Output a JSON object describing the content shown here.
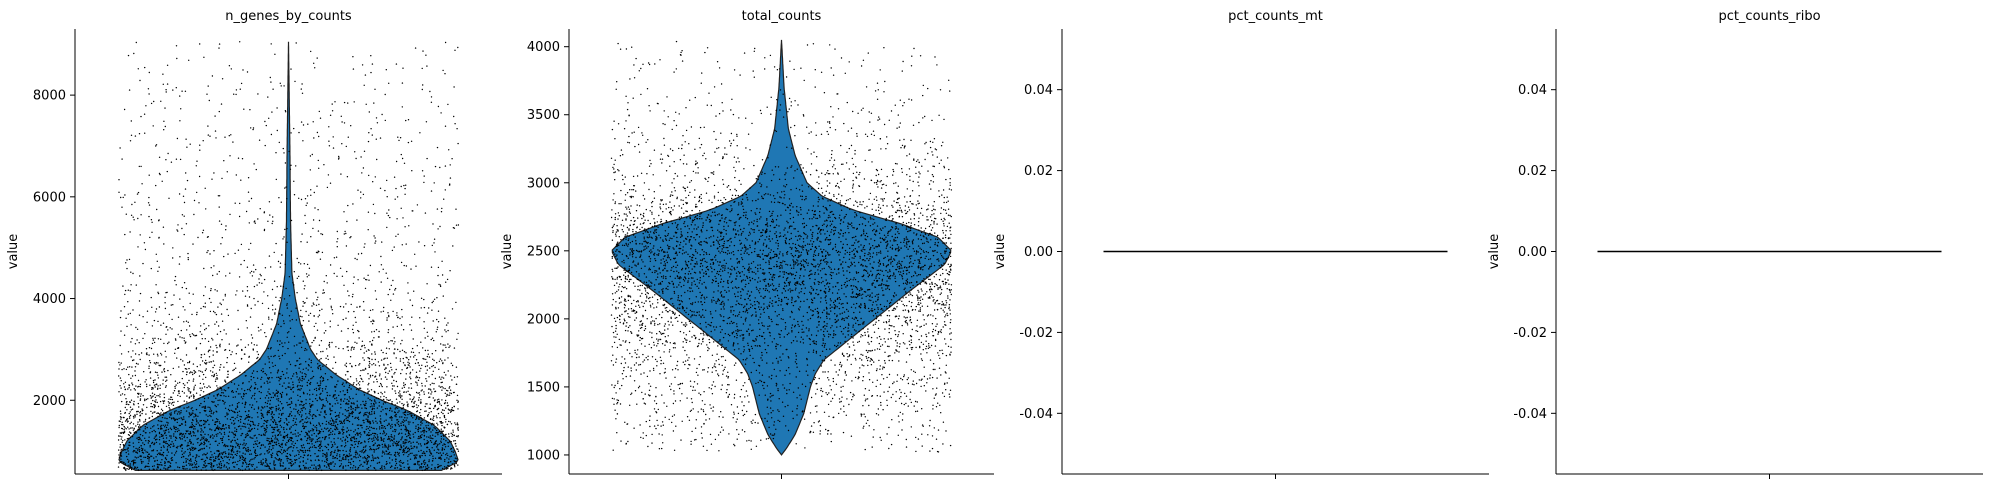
{
  "chart_data": [
    {
      "type": "violin",
      "title": "n_genes_by_counts",
      "ylabel": "value",
      "xlabel": "",
      "ylim": [
        550,
        9300
      ],
      "yticks": [
        2000,
        4000,
        6000,
        8000
      ],
      "violin_color": "#1f77b4",
      "points_color": "#000000",
      "violin_profile": [
        [
          620,
          0.9
        ],
        [
          800,
          1.0
        ],
        [
          1000,
          0.98
        ],
        [
          1200,
          0.95
        ],
        [
          1500,
          0.86
        ],
        [
          1800,
          0.7
        ],
        [
          2000,
          0.55
        ],
        [
          2200,
          0.42
        ],
        [
          2500,
          0.28
        ],
        [
          2800,
          0.17
        ],
        [
          3000,
          0.13
        ],
        [
          3500,
          0.07
        ],
        [
          4000,
          0.04
        ],
        [
          4500,
          0.02
        ],
        [
          5500,
          0.012
        ],
        [
          7000,
          0.008
        ],
        [
          9050,
          0.0
        ]
      ],
      "points_range": [
        620,
        9050
      ]
    },
    {
      "type": "violin",
      "title": "total_counts",
      "ylabel": "value",
      "xlabel": "",
      "ylim": [
        860,
        4130
      ],
      "yticks": [
        1000,
        1500,
        2000,
        2500,
        3000,
        3500,
        4000
      ],
      "violin_color": "#1f77b4",
      "points_color": "#000000",
      "violin_profile": [
        [
          1000,
          0.0
        ],
        [
          1050,
          0.03
        ],
        [
          1150,
          0.08
        ],
        [
          1300,
          0.13
        ],
        [
          1500,
          0.17
        ],
        [
          1600,
          0.2
        ],
        [
          1700,
          0.25
        ],
        [
          1800,
          0.35
        ],
        [
          2000,
          0.55
        ],
        [
          2200,
          0.75
        ],
        [
          2400,
          0.96
        ],
        [
          2500,
          1.0
        ],
        [
          2600,
          0.92
        ],
        [
          2700,
          0.7
        ],
        [
          2800,
          0.42
        ],
        [
          2900,
          0.24
        ],
        [
          3000,
          0.15
        ],
        [
          3200,
          0.08
        ],
        [
          3400,
          0.04
        ],
        [
          3700,
          0.015
        ],
        [
          4050,
          0.0
        ]
      ],
      "points_range": [
        1020,
        4050
      ]
    },
    {
      "type": "violin",
      "title": "pct_counts_mt",
      "ylabel": "value",
      "xlabel": "",
      "ylim": [
        -0.055,
        0.055
      ],
      "yticks": [
        -0.04,
        -0.02,
        0.0,
        0.02,
        0.04
      ],
      "violin_color": "#1f77b4",
      "points_color": "#000000",
      "constant_value": 0.0
    },
    {
      "type": "violin",
      "title": "pct_counts_ribo",
      "ylabel": "value",
      "xlabel": "",
      "ylim": [
        -0.055,
        0.055
      ],
      "yticks": [
        -0.04,
        -0.02,
        0.0,
        0.02,
        0.04
      ],
      "violin_color": "#1f77b4",
      "points_color": "#000000",
      "constant_value": 0.0
    }
  ]
}
